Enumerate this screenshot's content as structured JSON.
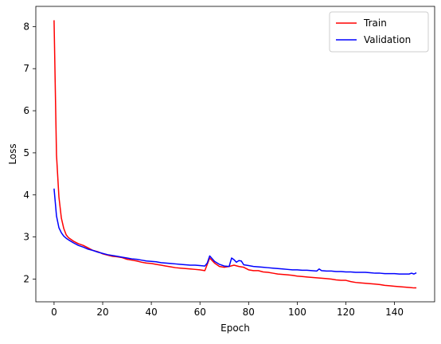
{
  "chart_data": {
    "type": "line",
    "xlabel": "Epoch",
    "ylabel": "Loss",
    "xlim": [
      -7.5,
      156.5
    ],
    "ylim": [
      1.46,
      8.48
    ],
    "xticks": [
      0,
      20,
      40,
      60,
      80,
      100,
      120,
      140
    ],
    "yticks": [
      2,
      3,
      4,
      5,
      6,
      7,
      8
    ],
    "grid": false,
    "legend_position": "top-right",
    "series": [
      {
        "name": "Train",
        "color": "#ff0000",
        "x": [
          0,
          1,
          2,
          3,
          4,
          5,
          6,
          8,
          10,
          12,
          14,
          16,
          18,
          20,
          22,
          24,
          26,
          28,
          30,
          32,
          34,
          36,
          38,
          40,
          42,
          44,
          46,
          48,
          50,
          52,
          54,
          56,
          58,
          60,
          62,
          63,
          64,
          66,
          68,
          70,
          72,
          74,
          76,
          78,
          80,
          82,
          84,
          86,
          88,
          90,
          92,
          94,
          96,
          98,
          100,
          102,
          104,
          106,
          108,
          110,
          112,
          114,
          116,
          118,
          120,
          122,
          124,
          126,
          128,
          130,
          132,
          134,
          136,
          138,
          140,
          142,
          144,
          146,
          148,
          149
        ],
        "y": [
          8.15,
          4.95,
          3.95,
          3.45,
          3.2,
          3.05,
          2.98,
          2.9,
          2.84,
          2.8,
          2.74,
          2.68,
          2.65,
          2.6,
          2.57,
          2.54,
          2.53,
          2.51,
          2.47,
          2.45,
          2.43,
          2.4,
          2.38,
          2.37,
          2.35,
          2.33,
          2.31,
          2.29,
          2.27,
          2.26,
          2.25,
          2.24,
          2.23,
          2.22,
          2.2,
          2.35,
          2.5,
          2.38,
          2.3,
          2.28,
          2.3,
          2.33,
          2.3,
          2.28,
          2.22,
          2.2,
          2.2,
          2.17,
          2.16,
          2.14,
          2.12,
          2.11,
          2.1,
          2.09,
          2.07,
          2.06,
          2.05,
          2.04,
          2.03,
          2.02,
          2.01,
          2.0,
          1.98,
          1.97,
          1.97,
          1.94,
          1.92,
          1.91,
          1.9,
          1.89,
          1.88,
          1.87,
          1.85,
          1.84,
          1.83,
          1.82,
          1.81,
          1.8,
          1.79,
          1.79
        ]
      },
      {
        "name": "Validation",
        "color": "#0000ff",
        "x": [
          0,
          1,
          2,
          3,
          4,
          5,
          6,
          8,
          10,
          12,
          14,
          16,
          18,
          20,
          22,
          24,
          26,
          28,
          30,
          32,
          34,
          36,
          38,
          40,
          42,
          44,
          46,
          48,
          50,
          52,
          54,
          56,
          58,
          60,
          62,
          63,
          64,
          66,
          68,
          70,
          72,
          73,
          74,
          75,
          76,
          77,
          78,
          80,
          82,
          84,
          86,
          88,
          90,
          92,
          94,
          96,
          98,
          100,
          102,
          104,
          106,
          108,
          109,
          110,
          112,
          114,
          116,
          118,
          120,
          122,
          124,
          126,
          128,
          130,
          132,
          134,
          136,
          138,
          140,
          142,
          144,
          146,
          147,
          148,
          149
        ],
        "y": [
          4.15,
          3.5,
          3.22,
          3.1,
          3.02,
          2.97,
          2.93,
          2.86,
          2.8,
          2.76,
          2.71,
          2.68,
          2.64,
          2.61,
          2.58,
          2.56,
          2.54,
          2.52,
          2.5,
          2.48,
          2.47,
          2.45,
          2.43,
          2.42,
          2.41,
          2.39,
          2.38,
          2.37,
          2.36,
          2.35,
          2.34,
          2.33,
          2.33,
          2.32,
          2.31,
          2.38,
          2.55,
          2.42,
          2.35,
          2.31,
          2.3,
          2.5,
          2.46,
          2.4,
          2.44,
          2.43,
          2.34,
          2.32,
          2.3,
          2.29,
          2.28,
          2.27,
          2.26,
          2.25,
          2.24,
          2.23,
          2.22,
          2.22,
          2.21,
          2.21,
          2.2,
          2.19,
          2.24,
          2.2,
          2.19,
          2.19,
          2.18,
          2.18,
          2.17,
          2.17,
          2.16,
          2.16,
          2.16,
          2.15,
          2.14,
          2.14,
          2.13,
          2.13,
          2.13,
          2.12,
          2.12,
          2.12,
          2.14,
          2.12,
          2.15
        ]
      }
    ]
  }
}
